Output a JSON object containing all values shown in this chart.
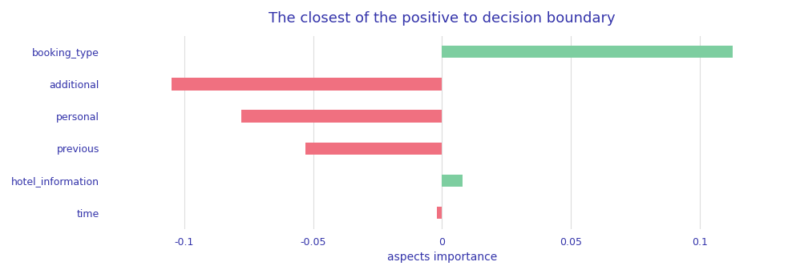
{
  "categories": [
    "booking_type",
    "additional",
    "personal",
    "previous",
    "hotel_information",
    "time"
  ],
  "values": [
    0.113,
    -0.105,
    -0.078,
    -0.053,
    0.008,
    -0.002
  ],
  "positive_color": "#7DCEA0",
  "negative_color": "#F07080",
  "title": "The closest of the positive to decision boundary",
  "xlabel": "aspects importance",
  "title_color": "#3333AA",
  "label_color": "#3333AA",
  "tick_color": "#3333AA",
  "xlabel_color": "#3333AA",
  "background_color": "#FFFFFF",
  "xlim": [
    -0.13,
    0.13
  ],
  "xticks": [
    -0.1,
    -0.05,
    0.0,
    0.05,
    0.1
  ],
  "xtick_labels": [
    "-0.1",
    "-0.05",
    "0",
    "0.05",
    "0.1"
  ],
  "grid_color": "#DDDDDD",
  "bar_height": 0.38,
  "figsize": [
    9.83,
    3.42
  ],
  "dpi": 100,
  "title_fontsize": 13,
  "label_fontsize": 9,
  "tick_fontsize": 9,
  "xlabel_fontsize": 10
}
